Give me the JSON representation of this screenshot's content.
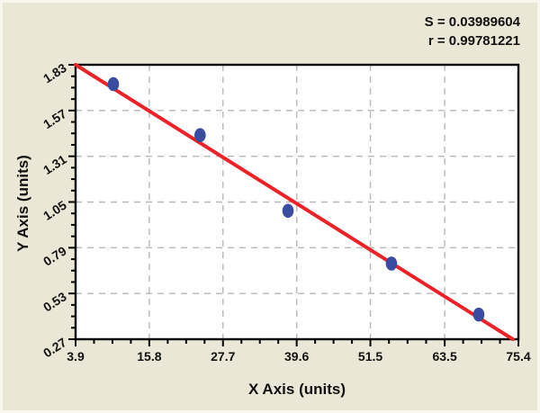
{
  "chart_data": {
    "type": "scatter",
    "title": "",
    "xlabel": "X Axis (units)",
    "ylabel": "Y Axis (units)",
    "xlim": [
      3.9,
      75.4
    ],
    "ylim": [
      0.27,
      1.83
    ],
    "x_tick_labels": [
      "3.9",
      "15.8",
      "27.7",
      "39.6",
      "51.5",
      "63.5",
      "75.4"
    ],
    "y_tick_labels": [
      "0.27",
      "0.53",
      "0.79",
      "1.05",
      "1.31",
      "1.57",
      "1.83"
    ],
    "minor_ticks_between_majors": 3,
    "grid": true,
    "grid_style": "dashed",
    "legend": "none",
    "points": [
      {
        "x": 10.0,
        "y": 1.72
      },
      {
        "x": 24.0,
        "y": 1.43
      },
      {
        "x": 38.2,
        "y": 1.0
      },
      {
        "x": 54.9,
        "y": 0.7
      },
      {
        "x": 69.0,
        "y": 0.41
      }
    ],
    "regression_line": {
      "x1": 3.9,
      "y1": 1.83,
      "x2": 74.5,
      "y2": 0.27
    },
    "annotations": {
      "s_line": "S = 0.03989604",
      "r_line": "r = 0.99781221"
    }
  },
  "colors": {
    "background": "#EAE7D6",
    "plot_background": "#FFFFFF",
    "axis": "#000000",
    "gridline": "#B8B8B8",
    "regression_line": "#EC2227",
    "data_point": "#3A4CA0",
    "text": "#111111"
  }
}
